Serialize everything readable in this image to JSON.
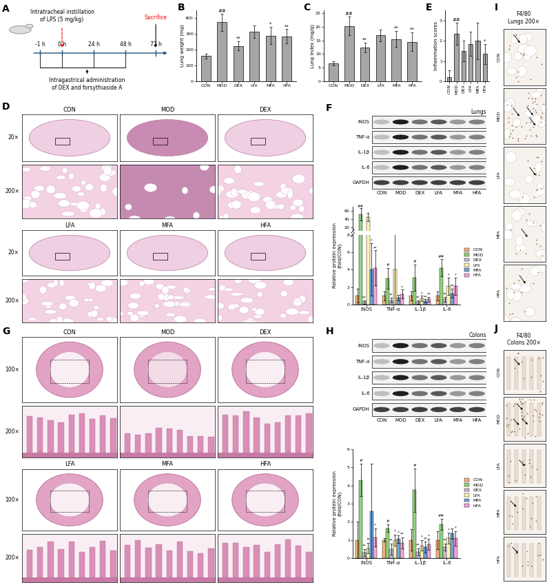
{
  "timeline": {
    "panel": "A",
    "top_text": "Intratracheal instillation\nof LPS (5 mg/kg)",
    "end_text": "Sacrifice",
    "times": [
      "-1 h",
      "0 h",
      "24 h",
      "48 h",
      "72 h"
    ],
    "bottom_text": "Intragastrical administration\nof DEX and forsythiaside A"
  },
  "histology": [
    {
      "panel": "D",
      "groups": [
        "CON",
        "MOD",
        "DEX",
        "LFA",
        "MFA",
        "HFA"
      ],
      "magnifications": [
        "20×",
        "200×"
      ]
    },
    {
      "panel": "G",
      "groups": [
        "CON",
        "MOD",
        "DEX",
        "LFA",
        "MFA",
        "HFA"
      ],
      "magnifications": [
        "100×",
        "200×"
      ]
    }
  ],
  "ihc": [
    {
      "panel": "I",
      "title": "F4/80",
      "subtitle": "Lungs 200×",
      "groups": [
        "CON",
        "MOD",
        "LFA",
        "MFA",
        "HFA"
      ]
    },
    {
      "panel": "J",
      "title": "F4/80",
      "subtitle": "Colons 200×",
      "groups": [
        "CON",
        "MOD",
        "LFA",
        "MFA",
        "HFA"
      ]
    }
  ],
  "blots": [
    {
      "title": "Lungs",
      "proteins": [
        "iNOS",
        "TNF-α",
        "IL-1β",
        "IL-6",
        "GAPDH"
      ],
      "groups": [
        "CON",
        "MOD",
        "DEX",
        "LFA",
        "MFA",
        "HFA"
      ]
    },
    {
      "title": "Colons",
      "proteins": [
        "iNOS",
        "TNF-α",
        "IL-1β",
        "IL-6",
        "GAPDH"
      ],
      "groups": [
        "CON",
        "MOD",
        "DEX",
        "LFA",
        "MFA",
        "HFA"
      ]
    }
  ],
  "chart_data": [
    {
      "panel": "B",
      "type": "bar",
      "y_label": "Lung weight (mg)",
      "color": "#a6a6a6",
      "categories": [
        "CON",
        "MOD",
        "DEX",
        "LFA",
        "MFA",
        "HFA"
      ],
      "values": [
        160,
        375,
        225,
        315,
        290,
        285
      ],
      "errors": [
        15,
        55,
        30,
        40,
        55,
        45
      ],
      "significance": [
        null,
        "##",
        "**",
        null,
        "*",
        "**"
      ],
      "ylim": [
        0,
        450
      ],
      "yticks": [
        0,
        100,
        200,
        300,
        400
      ]
    },
    {
      "panel": "C",
      "type": "bar",
      "y_label": "Lung index (mg/g)",
      "color": "#a6a6a6",
      "categories": [
        "CON",
        "MOD",
        "DEX",
        "LFA",
        "MFA",
        "HFA"
      ],
      "values": [
        6.5,
        20.3,
        12.3,
        16.8,
        15.5,
        14.5
      ],
      "errors": [
        0.7,
        3.5,
        1.8,
        2.2,
        3.0,
        3.5
      ],
      "significance": [
        null,
        "##",
        "**",
        null,
        "**",
        "**"
      ],
      "ylim": [
        0,
        26
      ],
      "yticks": [
        0,
        5,
        10,
        15,
        20,
        25
      ]
    },
    {
      "panel": "E",
      "type": "bar",
      "y_label": "Inflammation scores",
      "color": "#a6a6a6",
      "categories": [
        "CON",
        "MOD",
        "DEX",
        "LFA",
        "MFA",
        "HFA"
      ],
      "values": [
        0.2,
        2.35,
        1.5,
        1.85,
        2.0,
        1.35
      ],
      "errors": [
        0.35,
        0.55,
        0.5,
        0.6,
        0.9,
        0.5
      ],
      "significance": [
        null,
        "##",
        null,
        null,
        null,
        "*"
      ],
      "ylim": [
        0,
        3.5
      ],
      "yticks": [
        0,
        1,
        2,
        3
      ]
    },
    {
      "panel": "F",
      "type": "grouped_bar",
      "y_label": "Relative protein expression\n(fold/CON)",
      "categories": [
        "iNOS",
        "TNF-α",
        "IL-1β",
        "IL-6"
      ],
      "ylim": [
        0,
        70
      ],
      "break": [
        8,
        10
      ],
      "yticks": [
        0,
        2,
        4,
        6,
        8,
        20,
        40,
        60
      ],
      "legend": "right",
      "series": [
        {
          "name": "CON",
          "color": "#f4b183",
          "values": [
            1,
            1,
            1,
            1
          ],
          "errors": [
            0.8,
            0.5,
            0.5,
            0.5
          ],
          "significance": [
            null,
            null,
            null,
            null
          ]
        },
        {
          "name": "MOD",
          "color": "#8fd17a",
          "values": [
            52,
            3,
            3.1,
            4.2
          ],
          "errors": [
            15,
            1.2,
            1.5,
            1.0
          ],
          "significance": [
            "##",
            "#",
            "#",
            "##"
          ]
        },
        {
          "name": "DEX",
          "color": "#c9b8e0",
          "values": [
            0.3,
            0.5,
            0.3,
            0.6
          ],
          "errors": [
            0.2,
            0.3,
            0.2,
            0.3
          ],
          "significance": [
            "**",
            "**",
            "**",
            "**"
          ]
        },
        {
          "name": "LFA",
          "color": "#fff2b3",
          "values": [
            45,
            4,
            0.7,
            2.1
          ],
          "errors": [
            10,
            4.5,
            0.3,
            1.0
          ],
          "significance": [
            null,
            null,
            "*",
            "*"
          ]
        },
        {
          "name": "MFA",
          "color": "#6fa8dc",
          "values": [
            4,
            0.8,
            0.4,
            1.3
          ],
          "errors": [
            3,
            0.3,
            0.2,
            0.5
          ],
          "significance": [
            "*",
            null,
            "**",
            "**"
          ]
        },
        {
          "name": "HFA",
          "color": "#f4a6d7",
          "values": [
            4.2,
            1.2,
            0.6,
            2.1
          ],
          "errors": [
            2,
            0.5,
            0.3,
            1.0
          ],
          "significance": [
            "**",
            "*",
            "**",
            "*"
          ]
        }
      ]
    },
    {
      "panel": "H",
      "type": "grouped_bar",
      "y_label": "Relative protein expression\n(fold/CON)",
      "categories": [
        "iNOS",
        "TNF-α",
        "IL-1β",
        "IL-6"
      ],
      "ylim": [
        0,
        6
      ],
      "yticks": [
        0,
        1,
        2,
        3,
        4,
        5,
        6
      ],
      "legend": "right",
      "series": [
        {
          "name": "CON",
          "color": "#f4b183",
          "values": [
            1,
            1,
            1,
            1
          ],
          "errors": [
            1,
            0.1,
            0.6,
            0.5
          ],
          "significance": [
            null,
            null,
            null,
            null
          ]
        },
        {
          "name": "MOD",
          "color": "#8fd17a",
          "values": [
            4.3,
            1.65,
            3.75,
            1.85
          ],
          "errors": [
            0.9,
            0.2,
            1.2,
            0.3
          ],
          "significance": [
            "#",
            "#",
            "#",
            "##"
          ]
        },
        {
          "name": "DEX",
          "color": "#c9b8e0",
          "values": [
            0.3,
            0.5,
            0.35,
            0.6
          ],
          "errors": [
            0.2,
            0.3,
            0.2,
            0.2
          ],
          "significance": [
            "**",
            "**",
            "**",
            "**"
          ]
        },
        {
          "name": "LFA",
          "color": "#fff2b3",
          "values": [
            0.55,
            1.0,
            0.7,
            1.1
          ],
          "errors": [
            0.3,
            0.3,
            0.3,
            0.3
          ],
          "significance": [
            "**",
            "*",
            "*",
            "*"
          ]
        },
        {
          "name": "MFA",
          "color": "#6fa8dc",
          "values": [
            2.6,
            1.05,
            0.6,
            1.35
          ],
          "errors": [
            2.6,
            0.2,
            0.3,
            0.3
          ],
          "significance": [
            null,
            "*",
            "**",
            null
          ]
        },
        {
          "name": "HFA",
          "color": "#f4a6d7",
          "values": [
            1.15,
            0.85,
            0.75,
            1.1
          ],
          "errors": [
            0.5,
            0.3,
            0.3,
            0.4
          ],
          "significance": [
            "*",
            "**",
            "*",
            "*"
          ]
        }
      ]
    }
  ]
}
